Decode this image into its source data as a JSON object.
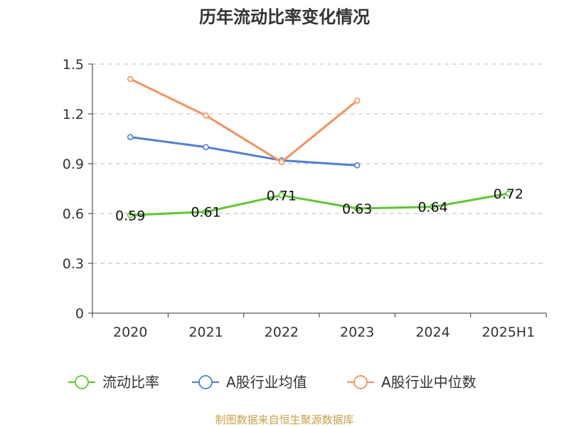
{
  "title": "历年流动比率变化情况",
  "source": "制图数据来自恒生聚源数据库",
  "colors": {
    "source_text": "#c8a14a",
    "axis": "#333333",
    "grid": "#bbbbbb"
  },
  "chart_data": {
    "type": "line",
    "title": "历年流动比率变化情况",
    "xlabel": "",
    "ylabel": "",
    "categories": [
      "2020",
      "2021",
      "2022",
      "2023",
      "2024",
      "2025H1"
    ],
    "ylim": [
      0,
      1.5
    ],
    "yticks": [
      "0",
      "0.3",
      "0.6",
      "0.9",
      "1.2",
      "1.5"
    ],
    "grid": true,
    "legend_position": "bottom",
    "series": [
      {
        "name": "流动比率",
        "color": "#5cc82d",
        "values": [
          0.59,
          0.61,
          0.71,
          0.63,
          0.64,
          0.72
        ],
        "labels": [
          "0.59",
          "0.61",
          "0.71",
          "0.63",
          "0.64",
          "0.72"
        ]
      },
      {
        "name": "A股行业均值",
        "color": "#4e7fdc",
        "values": [
          1.06,
          1.0,
          0.92,
          0.89,
          null,
          null
        ]
      },
      {
        "name": "A股行业中位数",
        "color": "#f5925a",
        "values": [
          1.41,
          1.19,
          0.91,
          1.28,
          null,
          null
        ]
      }
    ]
  }
}
